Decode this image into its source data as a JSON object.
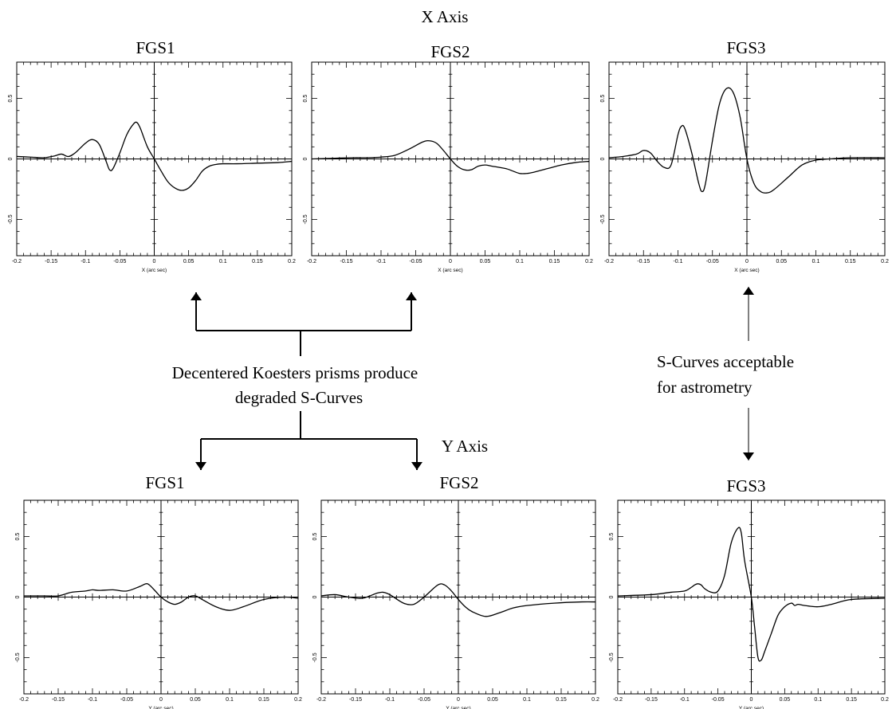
{
  "headings": {
    "x_axis": "X Axis",
    "y_axis": "Y Axis"
  },
  "notes": {
    "degraded_line1": "Decentered Koesters prisms produce",
    "degraded_line2": "degraded S-Curves",
    "acceptable_line1": "S-Curves acceptable",
    "acceptable_line2": "for astrometry"
  },
  "chart_data": [
    {
      "type": "line",
      "title": "FGS1",
      "xlabel": "X (arc sec)",
      "ylabel": "",
      "xlim": [
        -0.2,
        0.2
      ],
      "ylim": [
        -0.8,
        0.8
      ],
      "xticks": [
        "-0.2",
        "-0.15",
        "-0.1",
        "-0.05",
        "0",
        "0.05",
        "0.1",
        "0.15",
        "0.2"
      ],
      "yticks": [
        "0.5",
        "0",
        "-0.5"
      ],
      "series": [
        {
          "x": [
            -0.2,
            -0.18,
            -0.16,
            -0.145,
            -0.135,
            -0.125,
            -0.115,
            -0.1,
            -0.09,
            -0.08,
            -0.07,
            -0.065,
            -0.06,
            -0.05,
            -0.04,
            -0.03,
            -0.025,
            -0.02,
            -0.01,
            0,
            0.01,
            0.02,
            0.03,
            0.04,
            0.05,
            0.06,
            0.07,
            0.08,
            0.09,
            0.1,
            0.12,
            0.15,
            0.18,
            0.2
          ],
          "y": [
            0.02,
            0.015,
            0.01,
            0.025,
            0.04,
            0.02,
            0.05,
            0.13,
            0.16,
            0.12,
            -0.02,
            -0.09,
            -0.08,
            0.05,
            0.2,
            0.29,
            0.3,
            0.25,
            0.1,
            0,
            -0.1,
            -0.19,
            -0.24,
            -0.26,
            -0.24,
            -0.18,
            -0.1,
            -0.06,
            -0.045,
            -0.04,
            -0.04,
            -0.035,
            -0.03,
            -0.02
          ]
        }
      ]
    },
    {
      "type": "line",
      "title": "FGS2",
      "xlabel": "X (arc sec)",
      "ylabel": "",
      "xlim": [
        -0.2,
        0.2
      ],
      "ylim": [
        -0.8,
        0.8
      ],
      "xticks": [
        "-0.2",
        "-0.15",
        "-0.1",
        "-0.05",
        "0",
        "0.05",
        "0.1",
        "0.15",
        "0.2"
      ],
      "yticks": [
        "0.5",
        "0",
        "-0.5"
      ],
      "series": [
        {
          "x": [
            -0.2,
            -0.17,
            -0.14,
            -0.12,
            -0.1,
            -0.08,
            -0.06,
            -0.04,
            -0.03,
            -0.02,
            -0.01,
            0,
            0.01,
            0.02,
            0.03,
            0.04,
            0.05,
            0.06,
            0.08,
            0.09,
            0.1,
            0.11,
            0.12,
            0.14,
            0.16,
            0.18,
            0.2
          ],
          "y": [
            0,
            0.005,
            0.01,
            0.01,
            0.015,
            0.03,
            0.08,
            0.14,
            0.15,
            0.13,
            0.07,
            0,
            -0.06,
            -0.09,
            -0.09,
            -0.06,
            -0.05,
            -0.06,
            -0.08,
            -0.1,
            -0.12,
            -0.12,
            -0.11,
            -0.08,
            -0.05,
            -0.03,
            -0.02
          ]
        }
      ]
    },
    {
      "type": "line",
      "title": "FGS3",
      "xlabel": "X (arc sec)",
      "ylabel": "",
      "xlim": [
        -0.2,
        0.2
      ],
      "ylim": [
        -0.8,
        0.8
      ],
      "xticks": [
        "-0.2",
        "-0.15",
        "-0.1",
        "-0.05",
        "0",
        "0.05",
        "0.1",
        "0.15",
        "0.2"
      ],
      "yticks": [
        "0.5",
        "0",
        "-0.5"
      ],
      "series": [
        {
          "x": [
            -0.2,
            -0.18,
            -0.16,
            -0.15,
            -0.14,
            -0.13,
            -0.12,
            -0.11,
            -0.1,
            -0.095,
            -0.09,
            -0.08,
            -0.07,
            -0.065,
            -0.06,
            -0.05,
            -0.04,
            -0.03,
            -0.02,
            -0.01,
            0,
            0.01,
            0.02,
            0.03,
            0.04,
            0.06,
            0.08,
            0.1,
            0.12,
            0.15,
            0.2
          ],
          "y": [
            0.01,
            0.02,
            0.04,
            0.07,
            0.05,
            -0.02,
            -0.07,
            -0.05,
            0.2,
            0.27,
            0.25,
            0.05,
            -0.2,
            -0.27,
            -0.2,
            0.15,
            0.45,
            0.58,
            0.55,
            0.35,
            0,
            -0.2,
            -0.27,
            -0.28,
            -0.25,
            -0.15,
            -0.05,
            -0.01,
            0,
            0.01,
            0.01
          ]
        }
      ]
    },
    {
      "type": "line",
      "title": "FGS1",
      "xlabel": "Y (arc sec)",
      "ylabel": "",
      "xlim": [
        -0.2,
        0.2
      ],
      "ylim": [
        -0.8,
        0.8
      ],
      "xticks": [
        "-0.2",
        "-0.15",
        "-0.1",
        "-0.05",
        "0",
        "0.05",
        "0.1",
        "0.15",
        "0.2"
      ],
      "yticks": [
        "0.5",
        "0",
        "-0.5"
      ],
      "series": [
        {
          "x": [
            -0.2,
            -0.17,
            -0.15,
            -0.13,
            -0.11,
            -0.1,
            -0.09,
            -0.07,
            -0.05,
            -0.03,
            -0.02,
            -0.01,
            0,
            0.01,
            0.02,
            0.03,
            0.04,
            0.05,
            0.06,
            0.08,
            0.1,
            0.12,
            0.15,
            0.18,
            0.2
          ],
          "y": [
            0.01,
            0.01,
            0.01,
            0.04,
            0.05,
            0.06,
            0.055,
            0.06,
            0.05,
            0.09,
            0.11,
            0.06,
            0,
            -0.04,
            -0.06,
            -0.04,
            0,
            0.01,
            -0.02,
            -0.08,
            -0.11,
            -0.08,
            -0.02,
            0,
            -0.01
          ]
        }
      ]
    },
    {
      "type": "line",
      "title": "FGS2",
      "xlabel": "Y (arc sec)",
      "ylabel": "",
      "xlim": [
        -0.2,
        0.2
      ],
      "ylim": [
        -0.8,
        0.8
      ],
      "xticks": [
        "-0.2",
        "-0.15",
        "-0.1",
        "-0.05",
        "0",
        "0.05",
        "0.1",
        "0.15",
        "0.2"
      ],
      "yticks": [
        "0.5",
        "0",
        "-0.5"
      ],
      "series": [
        {
          "x": [
            -0.2,
            -0.18,
            -0.16,
            -0.14,
            -0.12,
            -0.11,
            -0.1,
            -0.08,
            -0.065,
            -0.05,
            -0.03,
            -0.02,
            -0.01,
            0,
            0.01,
            0.02,
            0.04,
            0.06,
            0.08,
            0.1,
            0.14,
            0.18,
            0.2
          ],
          "y": [
            0.01,
            0.02,
            0,
            -0.01,
            0.03,
            0.04,
            0.02,
            -0.05,
            -0.06,
            0,
            0.1,
            0.1,
            0.05,
            -0.02,
            -0.08,
            -0.12,
            -0.16,
            -0.13,
            -0.09,
            -0.07,
            -0.05,
            -0.04,
            -0.04
          ]
        }
      ]
    },
    {
      "type": "line",
      "title": "FGS3",
      "xlabel": "Y (arc sec)",
      "ylabel": "",
      "xlim": [
        -0.2,
        0.2
      ],
      "ylim": [
        -0.8,
        0.8
      ],
      "xticks": [
        "-0.2",
        "-0.15",
        "-0.1",
        "-0.05",
        "0",
        "0.05",
        "0.1",
        "0.15",
        "0.2"
      ],
      "yticks": [
        "0.5",
        "0",
        "-0.5"
      ],
      "series": [
        {
          "x": [
            -0.2,
            -0.15,
            -0.12,
            -0.1,
            -0.09,
            -0.085,
            -0.08,
            -0.075,
            -0.07,
            -0.06,
            -0.05,
            -0.04,
            -0.03,
            -0.02,
            -0.015,
            -0.01,
            0,
            0.005,
            0.01,
            0.015,
            0.02,
            0.03,
            0.04,
            0.05,
            0.06,
            0.065,
            0.07,
            0.08,
            0.1,
            0.12,
            0.15,
            0.2
          ],
          "y": [
            0.01,
            0.02,
            0.04,
            0.05,
            0.08,
            0.1,
            0.11,
            0.1,
            0.07,
            0.04,
            0.05,
            0.18,
            0.45,
            0.57,
            0.53,
            0.3,
            0,
            -0.25,
            -0.5,
            -0.52,
            -0.45,
            -0.3,
            -0.15,
            -0.08,
            -0.05,
            -0.07,
            -0.06,
            -0.07,
            -0.08,
            -0.06,
            -0.02,
            -0.01
          ]
        }
      ]
    }
  ]
}
